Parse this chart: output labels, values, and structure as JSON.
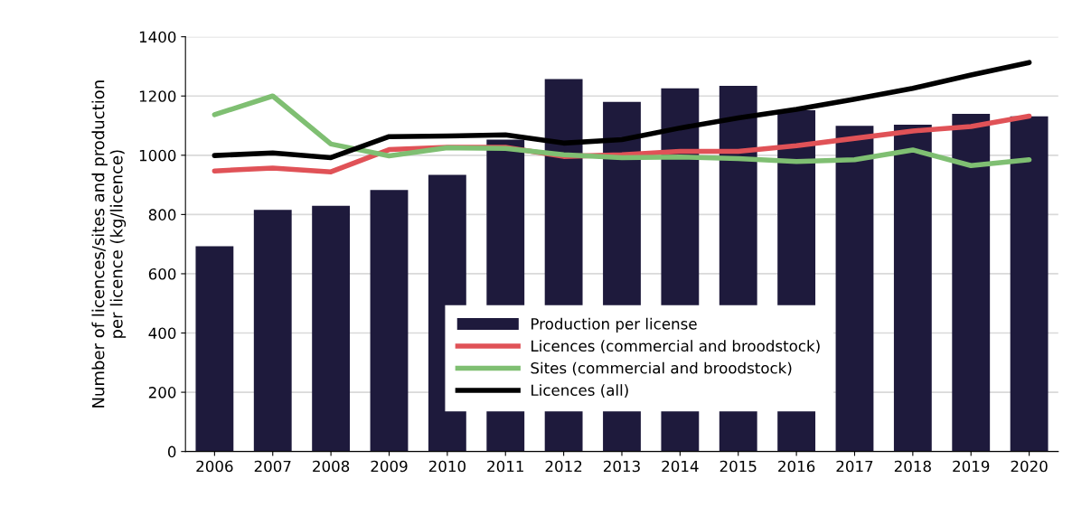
{
  "chart_data": {
    "type": "bar",
    "ylabel": "Number of licences/sites and production\nper licence (kg/licence)",
    "categories": [
      "2006",
      "2007",
      "2008",
      "2009",
      "2010",
      "2011",
      "2012",
      "2013",
      "2014",
      "2015",
      "2016",
      "2017",
      "2018",
      "2019",
      "2020"
    ],
    "series": [
      {
        "name": "Production per license",
        "color": "#1e1a3c",
        "values": [
          693,
          816,
          829,
          883,
          934,
          1053,
          1257,
          1180,
          1226,
          1234,
          1152,
          1099,
          1103,
          1140,
          1131
        ]
      },
      {
        "name": "Licences (commercial and broodstock)",
        "type": "line",
        "color": "#e05257",
        "values": [
          947,
          957,
          944,
          1019,
          1027,
          1027,
          996,
          1002,
          1013,
          1013,
          1032,
          1057,
          1082,
          1097,
          1132
        ]
      },
      {
        "name": "Sites (commercial and broodstock)",
        "type": "line",
        "color": "#7fbf72",
        "values": [
          1137,
          1200,
          1038,
          998,
          1025,
          1023,
          1002,
          992,
          994,
          989,
          979,
          985,
          1018,
          965,
          985
        ]
      },
      {
        "name": "Licences (all)",
        "type": "line",
        "color": "#000000",
        "values": [
          999,
          1008,
          992,
          1063,
          1065,
          1069,
          1041,
          1053,
          1092,
          1126,
          1155,
          1189,
          1226,
          1271,
          1313
        ]
      }
    ],
    "ylim": [
      0,
      1400
    ],
    "yticks": [
      0,
      200,
      400,
      600,
      800,
      1000,
      1200,
      1400
    ],
    "grid": "y",
    "legend": "bottom",
    "marker": "none",
    "line_style": "solid"
  }
}
